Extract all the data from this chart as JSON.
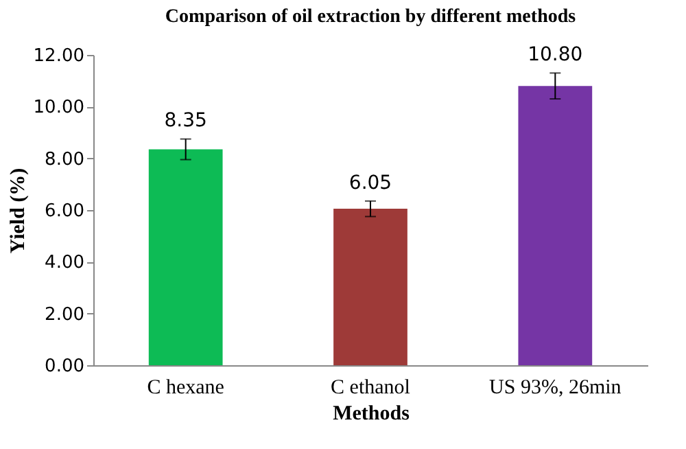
{
  "chart_data": {
    "type": "bar",
    "title": "Comparison of oil extraction by different methods",
    "xlabel": "Methods",
    "ylabel": "Yield (%)",
    "categories": [
      "C hexane",
      "C ethanol",
      "US 93%, 26min"
    ],
    "values": [
      8.35,
      6.05,
      10.8
    ],
    "colors": [
      "#0dbb55",
      "#9e3a38",
      "#7535a5"
    ],
    "errors": [
      0.4,
      0.3,
      0.5
    ],
    "value_labels": [
      "8.35",
      "6.05",
      "10.80"
    ],
    "ylim": [
      0,
      12
    ],
    "yticks": [
      {
        "value": 0,
        "label": "0.00"
      },
      {
        "value": 2,
        "label": "2.00"
      },
      {
        "value": 4,
        "label": "4.00"
      },
      {
        "value": 6,
        "label": "6.00"
      },
      {
        "value": 8,
        "label": "8.00"
      },
      {
        "value": 10,
        "label": "10.00"
      },
      {
        "value": 12,
        "label": "12.00"
      }
    ],
    "grid": false
  }
}
